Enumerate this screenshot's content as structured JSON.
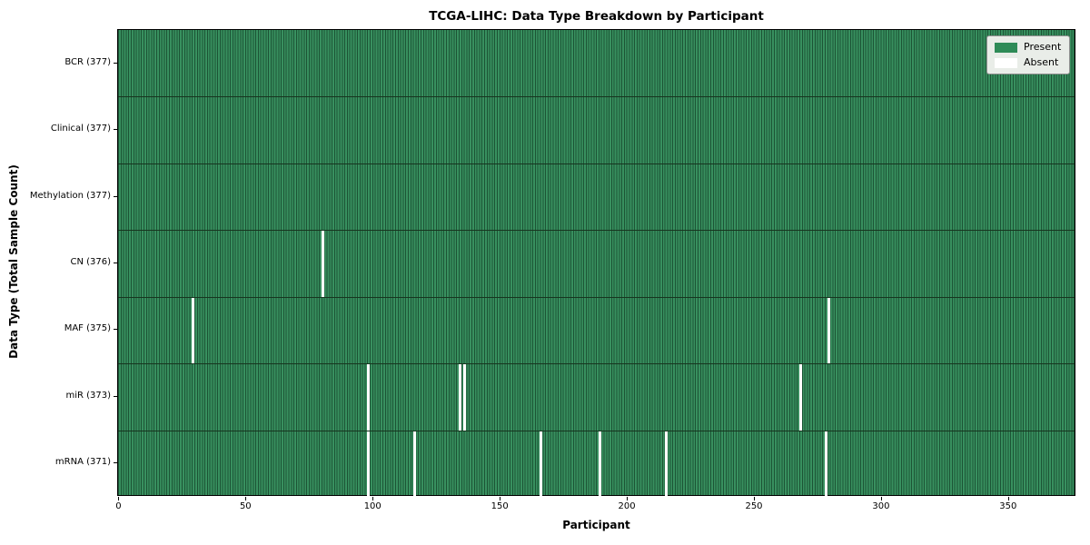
{
  "title": "TCGA-LIHC: Data Type Breakdown by Participant",
  "xlabel": "Participant",
  "ylabel": "Data Type (Total Sample Count)",
  "legend": {
    "present_label": "Present",
    "absent_label": "Absent",
    "position": "upper right"
  },
  "colors": {
    "present": "#2e8b57",
    "present_fill": "#38905f",
    "column_grid_line": "#1c5435",
    "row_divider": "#17351f",
    "absent": "#ffffff",
    "legend_bg": "#e9ede8",
    "legend_border": "#8f8f8f",
    "frame": "#000000"
  },
  "chart_data": {
    "type": "heatmap",
    "title": "TCGA-LIHC: Data Type Breakdown by Participant",
    "xlabel": "Participant",
    "ylabel": "Data Type (Total Sample Count)",
    "n_participants": 377,
    "xlim": [
      -0.5,
      376.5
    ],
    "x_ticks": [
      0,
      50,
      100,
      150,
      200,
      250,
      300,
      350
    ],
    "grid": false,
    "legend_entries": [
      "Present",
      "Absent"
    ],
    "legend_position": "upper right",
    "value_encoding": {
      "present": 1,
      "absent": 0
    },
    "rows": [
      {
        "label": "BCR (377)",
        "data_type": "BCR",
        "total": 377,
        "absent_participants": []
      },
      {
        "label": "Clinical (377)",
        "data_type": "Clinical",
        "total": 377,
        "absent_participants": []
      },
      {
        "label": "Methylation (377)",
        "data_type": "Methylation",
        "total": 377,
        "absent_participants": []
      },
      {
        "label": "CN (376)",
        "data_type": "CN",
        "total": 376,
        "absent_participants": [
          80
        ]
      },
      {
        "label": "MAF (375)",
        "data_type": "MAF",
        "total": 375,
        "absent_participants": [
          29,
          279
        ]
      },
      {
        "label": "miR (373)",
        "data_type": "miR",
        "total": 373,
        "absent_participants": [
          98,
          134,
          136,
          268
        ]
      },
      {
        "label": "mRNA (371)",
        "data_type": "mRNA",
        "total": 371,
        "absent_participants": [
          98,
          116,
          166,
          189,
          215,
          278
        ]
      }
    ]
  }
}
